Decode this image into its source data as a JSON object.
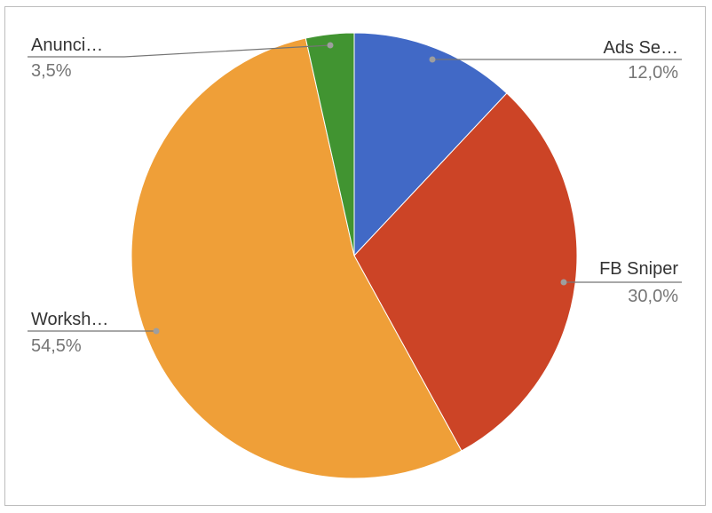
{
  "chart_data": {
    "type": "pie",
    "title": "",
    "slices": [
      {
        "label": "Ads Se…",
        "value": 12.0,
        "value_label": "12,0%",
        "color": "#4169c6"
      },
      {
        "label": "FB Sniper",
        "value": 30.0,
        "value_label": "30,0%",
        "color": "#cc4426"
      },
      {
        "label": "Worksh…",
        "value": 54.5,
        "value_label": "54,5%",
        "color": "#ef9f38"
      },
      {
        "label": "Anunci…",
        "value": 3.5,
        "value_label": "3,5%",
        "color": "#419431"
      }
    ],
    "start_angle": "12 o'clock",
    "direction": "clockwise",
    "legend": "none",
    "labels": "outside-with-leader-lines"
  }
}
